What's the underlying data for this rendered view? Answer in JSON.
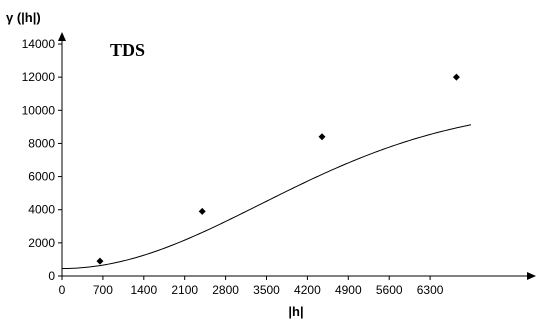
{
  "chart_data": {
    "type": "scatter",
    "title": "TDS",
    "xlabel": "|h|",
    "ylabel": "γ (|h|)",
    "xlim": [
      0,
      7000
    ],
    "ylim": [
      0,
      14000
    ],
    "x_ticks": [
      0,
      700,
      1400,
      2100,
      2800,
      3500,
      4200,
      4900,
      5600,
      6300
    ],
    "y_ticks": [
      0,
      2000,
      4000,
      6000,
      8000,
      10000,
      12000,
      14000
    ],
    "points": [
      {
        "x": 650,
        "y": 900
      },
      {
        "x": 2400,
        "y": 3900
      },
      {
        "x": 4450,
        "y": 8400
      },
      {
        "x": 6750,
        "y": 12000
      }
    ],
    "fitted_curve": {
      "type": "gaussian-variogram",
      "nugget": 450,
      "sill": 10300,
      "range": 4800
    },
    "grid": false
  }
}
